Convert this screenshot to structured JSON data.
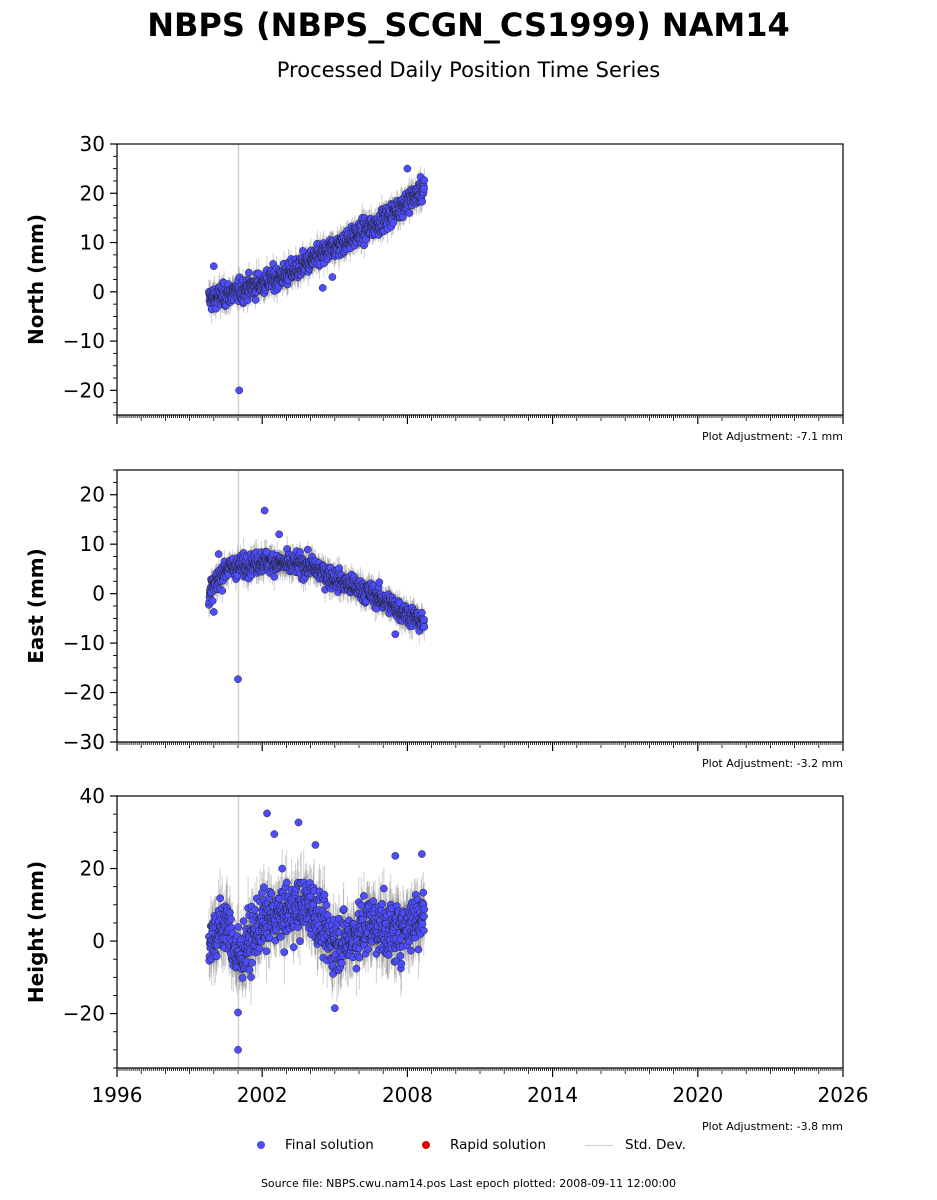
{
  "header": {
    "title": "NBPS (NBPS_SCGN_CS1999) NAM14",
    "subtitle": "Processed Daily Position Time Series"
  },
  "legend": {
    "final_label": "Final solution",
    "rapid_label": "Rapid solution",
    "std_label": "Std. Dev.",
    "final_color": "#4d4dff",
    "rapid_color": "#dd0000",
    "std_color": "#cfcfcf"
  },
  "footer": {
    "source": "Source file: NBPS.cwu.nam14.pos  Last epoch plotted: 2008-09-11 12:00:00"
  },
  "chart_data": [
    {
      "type": "scatter",
      "component": "north",
      "ylabel": "North (mm)",
      "xlim": [
        1996,
        2026
      ],
      "ylim": [
        -25,
        30
      ],
      "yticks": [
        -20,
        -10,
        0,
        10,
        20,
        30
      ],
      "adjustment": "Plot Adjustment: -7.1 mm",
      "x_start": 1999.8,
      "x_end": 2008.7,
      "trend": [
        [
          1999.8,
          -1.5
        ],
        [
          2001.0,
          0.0
        ],
        [
          2003.0,
          3.5
        ],
        [
          2005.0,
          9.0
        ],
        [
          2007.0,
          14.5
        ],
        [
          2008.7,
          21.0
        ]
      ],
      "noise": 1.6,
      "std": 2.0,
      "outliers": [
        [
          2001.05,
          -20.0
        ],
        [
          2004.5,
          0.8
        ],
        [
          2004.9,
          3.0
        ],
        [
          2008.0,
          25.0
        ],
        [
          2000.0,
          5.2
        ]
      ]
    },
    {
      "type": "scatter",
      "component": "east",
      "ylabel": "East (mm)",
      "xlim": [
        1996,
        2026
      ],
      "ylim": [
        -30,
        25
      ],
      "yticks": [
        -30,
        -20,
        -10,
        0,
        10,
        20
      ],
      "adjustment": "Plot Adjustment: -3.2 mm",
      "x_start": 1999.8,
      "x_end": 2008.7,
      "trend": [
        [
          1999.8,
          0.0
        ],
        [
          2000.5,
          5.0
        ],
        [
          2002.0,
          6.5
        ],
        [
          2004.0,
          5.5
        ],
        [
          2005.0,
          3.0
        ],
        [
          2006.5,
          0.0
        ],
        [
          2008.7,
          -6.0
        ]
      ],
      "noise": 1.5,
      "std": 2.0,
      "outliers": [
        [
          2001.0,
          -17.3
        ],
        [
          2002.1,
          16.8
        ],
        [
          2002.7,
          12.0
        ],
        [
          2007.5,
          -8.2
        ],
        [
          2000.0,
          -3.7
        ],
        [
          2000.2,
          8.0
        ]
      ]
    },
    {
      "type": "scatter",
      "component": "height",
      "ylabel": "Height (mm)",
      "xlim": [
        1996,
        2026
      ],
      "xticks": [
        1996,
        2002,
        2008,
        2014,
        2020,
        2026
      ],
      "ylim": [
        -35,
        40
      ],
      "yticks": [
        -20,
        0,
        20,
        40
      ],
      "adjustment": "Plot Adjustment: -3.8 mm",
      "x_start": 1999.8,
      "x_end": 2008.7,
      "trend": [
        [
          1999.8,
          0.0
        ],
        [
          2000.5,
          5.0
        ],
        [
          2001.0,
          -5.0
        ],
        [
          2002.0,
          5.0
        ],
        [
          2003.0,
          8.0
        ],
        [
          2004.0,
          10.0
        ],
        [
          2004.8,
          0.0
        ],
        [
          2005.5,
          0.0
        ],
        [
          2006.5,
          5.0
        ],
        [
          2007.5,
          2.0
        ],
        [
          2008.7,
          8.0
        ]
      ],
      "noise": 5.5,
      "std": 6.0,
      "outliers": [
        [
          2001.0,
          -30.0
        ],
        [
          2002.2,
          35.2
        ],
        [
          2002.5,
          29.5
        ],
        [
          2003.5,
          32.7
        ],
        [
          2004.2,
          26.5
        ],
        [
          2005.0,
          -18.5
        ],
        [
          2007.5,
          23.5
        ],
        [
          2008.6,
          24.0
        ],
        [
          2001.0,
          -19.7
        ]
      ]
    }
  ]
}
